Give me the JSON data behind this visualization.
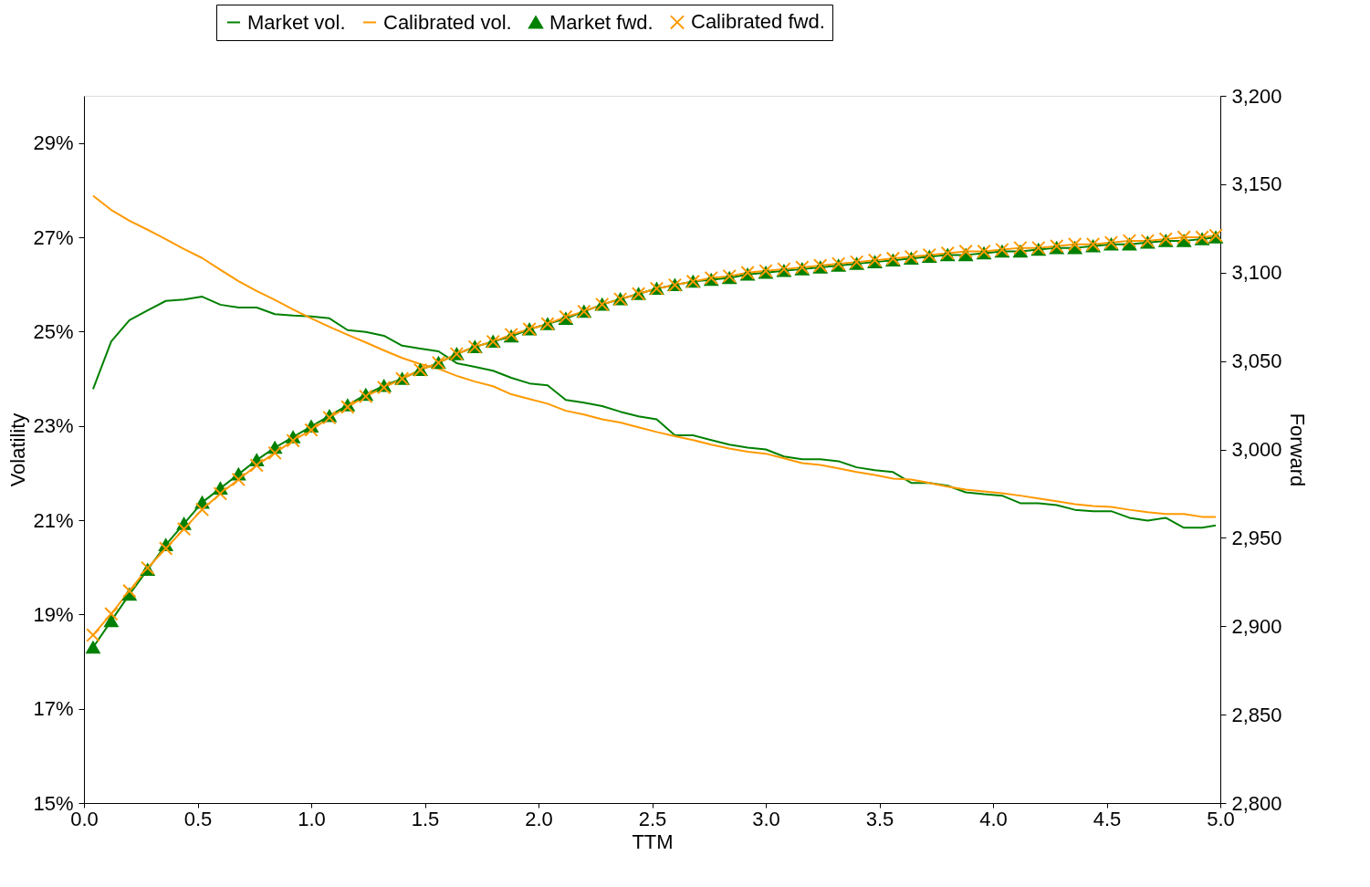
{
  "chart_data": {
    "type": "line",
    "xlabel": "TTM",
    "ylabel": "Volatility",
    "y2label": "Forward",
    "x": [
      0.04,
      0.12,
      0.2,
      0.28,
      0.36,
      0.44,
      0.52,
      0.6,
      0.68,
      0.76,
      0.84,
      0.92,
      1.0,
      1.08,
      1.16,
      1.24,
      1.32,
      1.4,
      1.48,
      1.56,
      1.64,
      1.72,
      1.8,
      1.88,
      1.96,
      2.04,
      2.12,
      2.2,
      2.28,
      2.36,
      2.44,
      2.52,
      2.6,
      2.68,
      2.76,
      2.84,
      2.92,
      3.0,
      3.08,
      3.16,
      3.24,
      3.32,
      3.4,
      3.48,
      3.56,
      3.64,
      3.72,
      3.8,
      3.88,
      3.96,
      4.04,
      4.12,
      4.2,
      4.28,
      4.36,
      4.44,
      4.52,
      4.6,
      4.68,
      4.76,
      4.84,
      4.92,
      4.98
    ],
    "series": [
      {
        "name": "Market vol.",
        "color": "#008000",
        "marker": "none",
        "values": [
          23.78,
          24.79,
          25.24,
          25.45,
          25.65,
          25.68,
          25.74,
          25.57,
          25.51,
          25.51,
          25.37,
          25.34,
          25.32,
          25.28,
          25.03,
          24.99,
          24.91,
          24.7,
          24.64,
          24.58,
          24.33,
          24.25,
          24.17,
          24.02,
          23.9,
          23.86,
          23.55,
          23.49,
          23.42,
          23.3,
          23.2,
          23.14,
          22.8,
          22.8,
          22.7,
          22.6,
          22.54,
          22.5,
          22.35,
          22.29,
          22.29,
          22.25,
          22.12,
          22.06,
          22.02,
          21.79,
          21.79,
          21.73,
          21.59,
          21.55,
          21.52,
          21.36,
          21.36,
          21.32,
          21.22,
          21.19,
          21.19,
          21.05,
          20.99,
          21.05,
          20.84,
          20.84,
          20.89
        ]
      },
      {
        "name": "Calibrated vol.",
        "color": "#ff9900",
        "marker": "none",
        "values": [
          27.88,
          27.58,
          27.35,
          27.16,
          26.96,
          26.75,
          26.56,
          26.31,
          26.07,
          25.86,
          25.67,
          25.47,
          25.28,
          25.1,
          24.93,
          24.77,
          24.6,
          24.44,
          24.31,
          24.21,
          24.06,
          23.94,
          23.84,
          23.67,
          23.57,
          23.47,
          23.32,
          23.24,
          23.14,
          23.07,
          22.97,
          22.87,
          22.78,
          22.7,
          22.6,
          22.52,
          22.45,
          22.41,
          22.31,
          22.21,
          22.17,
          22.1,
          22.02,
          21.96,
          21.88,
          21.86,
          21.79,
          21.71,
          21.65,
          21.61,
          21.57,
          21.52,
          21.46,
          21.4,
          21.34,
          21.3,
          21.28,
          21.22,
          21.17,
          21.13,
          21.13,
          21.07,
          21.07
        ]
      },
      {
        "name": "Market fwd.",
        "color": "#008000",
        "marker": "triangle",
        "axis": "y2",
        "values": [
          2888,
          2903,
          2918,
          2932,
          2946,
          2958,
          2970,
          2978,
          2986,
          2994,
          3001,
          3007,
          3013,
          3019,
          3025,
          3031,
          3036,
          3040,
          3045,
          3049,
          3054,
          3058,
          3061,
          3064,
          3068,
          3071,
          3074,
          3078,
          3082,
          3085,
          3088,
          3091,
          3093,
          3095,
          3096,
          3097,
          3099,
          3100,
          3101,
          3102,
          3103,
          3104,
          3105,
          3106,
          3107,
          3108,
          3109,
          3110,
          3110,
          3111,
          3112,
          3112,
          3113,
          3114,
          3114,
          3115,
          3116,
          3116,
          3117,
          3118,
          3118,
          3119,
          3120
        ]
      },
      {
        "name": "Calibrated fwd.",
        "color": "#ff9900",
        "marker": "cross",
        "axis": "y2",
        "values": [
          2895,
          2907,
          2920,
          2933,
          2944,
          2955,
          2966,
          2975,
          2983,
          2991,
          2998,
          3005,
          3011,
          3018,
          3024,
          3030,
          3035,
          3040,
          3045,
          3049,
          3054,
          3058,
          3061,
          3065,
          3068,
          3071,
          3075,
          3078,
          3082,
          3085,
          3088,
          3091,
          3093,
          3095,
          3097,
          3098,
          3100,
          3101,
          3102,
          3103,
          3104,
          3105,
          3106,
          3107,
          3108,
          3109,
          3110,
          3111,
          3112,
          3112,
          3113,
          3114,
          3114,
          3115,
          3116,
          3116,
          3117,
          3118,
          3118,
          3119,
          3120,
          3120,
          3121
        ]
      }
    ],
    "xlim": [
      0,
      5
    ],
    "xticks": [
      {
        "value": 0,
        "label": "0.0"
      },
      {
        "value": 0.5,
        "label": "0.5"
      },
      {
        "value": 1,
        "label": "1.0"
      },
      {
        "value": 1.5,
        "label": "1.5"
      },
      {
        "value": 2,
        "label": "2.0"
      },
      {
        "value": 2.5,
        "label": "2.5"
      },
      {
        "value": 3,
        "label": "3.0"
      },
      {
        "value": 3.5,
        "label": "3.5"
      },
      {
        "value": 4,
        "label": "4.0"
      },
      {
        "value": 4.5,
        "label": "4.5"
      },
      {
        "value": 5,
        "label": "5.0"
      }
    ],
    "ylim": [
      15,
      30
    ],
    "yticks": [
      {
        "value": 15,
        "label": "15%"
      },
      {
        "value": 17,
        "label": "17%"
      },
      {
        "value": 19,
        "label": "19%"
      },
      {
        "value": 21,
        "label": "21%"
      },
      {
        "value": 23,
        "label": "23%"
      },
      {
        "value": 25,
        "label": "25%"
      },
      {
        "value": 27,
        "label": "27%"
      },
      {
        "value": 29,
        "label": "29%"
      }
    ],
    "y2lim": [
      2800,
      3200
    ],
    "y2ticks": [
      {
        "value": 2800,
        "label": "2,800"
      },
      {
        "value": 2850,
        "label": "2,850"
      },
      {
        "value": 2900,
        "label": "2,900"
      },
      {
        "value": 2950,
        "label": "2,950"
      },
      {
        "value": 3000,
        "label": "3,000"
      },
      {
        "value": 3050,
        "label": "3,050"
      },
      {
        "value": 3100,
        "label": "3,100"
      },
      {
        "value": 3150,
        "label": "3,150"
      },
      {
        "value": 3200,
        "label": "3,200"
      }
    ],
    "legend": "top",
    "grid": false,
    "line_style": "solid"
  }
}
